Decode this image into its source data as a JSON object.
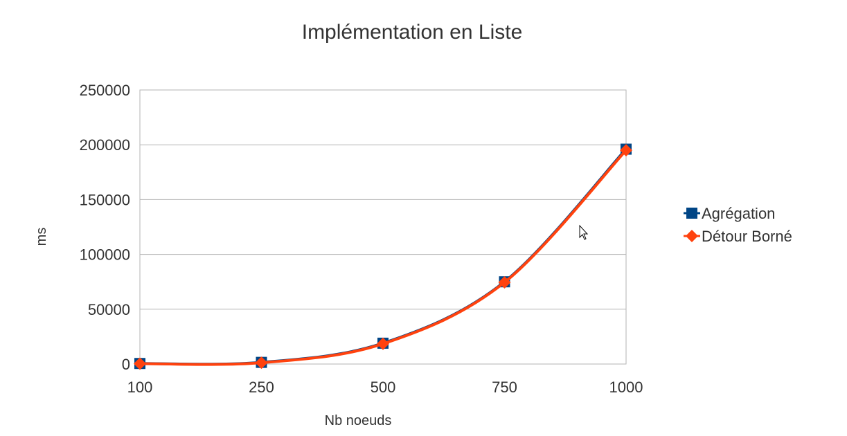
{
  "chart_data": {
    "type": "line",
    "title": "Implémentation en Liste",
    "xlabel": "Nb noeuds",
    "ylabel": "ms",
    "categories": [
      "100",
      "250",
      "500",
      "750",
      "1000"
    ],
    "ylim": [
      0,
      250000
    ],
    "yticks": [
      "0",
      "50000",
      "100000",
      "150000",
      "200000",
      "250000"
    ],
    "grid": true,
    "legend_position": "right",
    "smooth": true,
    "series": [
      {
        "name": "Agrégation",
        "color": "#004586",
        "marker": "square",
        "values": [
          500,
          1500,
          19000,
          75000,
          196000
        ]
      },
      {
        "name": "Détour Borné",
        "color": "#ff420e",
        "marker": "diamond",
        "values": [
          300,
          1200,
          18500,
          74500,
          195000
        ]
      }
    ]
  },
  "cursor": {
    "icon": "mouse-pointer-icon"
  }
}
